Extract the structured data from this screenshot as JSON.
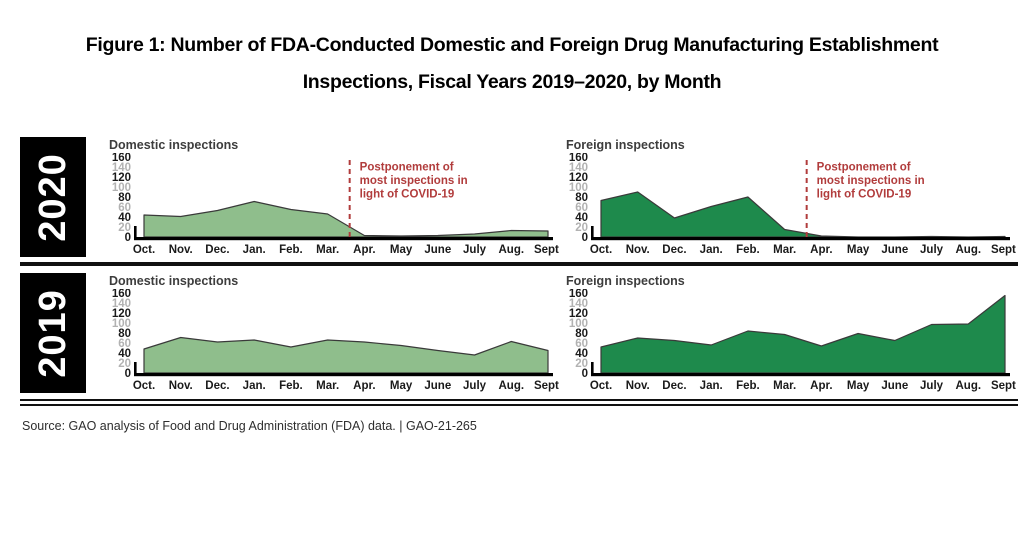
{
  "header": {
    "title_line1": "Figure 1: Number of FDA-Conducted Domestic and Foreign Drug Manufacturing Establishment",
    "title_line2": "Inspections, Fiscal Years 2019–2020, by Month"
  },
  "years": [
    "2020",
    "2019"
  ],
  "source": {
    "text": "Source: GAO analysis of Food and Drug Administration (FDA) data.  |  GAO-21-265"
  },
  "colors": {
    "domestic_fill": "#8fbe8c",
    "foreign_fill": "#1e8a4c",
    "annotation_red": "#b13c3c",
    "axis_major": "#1a1a1a",
    "axis_minor": "#b2b2b2",
    "area_outline": "#3a3a3a"
  },
  "chart_data": {
    "type": "area",
    "categories": [
      "Oct.",
      "Nov.",
      "Dec.",
      "Jan.",
      "Feb.",
      "Mar.",
      "Apr.",
      "May",
      "June",
      "July",
      "Aug.",
      "Sept."
    ],
    "ylim": [
      0,
      160
    ],
    "y_ticks": [
      0,
      20,
      40,
      60,
      80,
      100,
      120,
      140,
      160
    ],
    "grid": false,
    "legend": "none",
    "panels": [
      {
        "year": "2020",
        "series": "Domestic inspections",
        "values": [
          44,
          41,
          53,
          71,
          55,
          46,
          3,
          2,
          3,
          6,
          13,
          12
        ],
        "fill": "#8fbe8c",
        "annotation": {
          "lines": [
            "Postponement of",
            "most inspections in",
            "light of COVID-19"
          ],
          "month_position": 5.6
        }
      },
      {
        "year": "2020",
        "series": "Foreign inspections",
        "values": [
          73,
          90,
          38,
          61,
          80,
          15,
          2,
          0,
          0,
          1,
          0,
          1
        ],
        "fill": "#1e8a4c",
        "annotation": {
          "lines": [
            "Postponement of",
            "most inspections in",
            "light of COVID-19"
          ],
          "month_position": 5.6
        }
      },
      {
        "year": "2019",
        "series": "Domestic inspections",
        "values": [
          48,
          71,
          62,
          66,
          52,
          66,
          62,
          55,
          45,
          36,
          63,
          45
        ],
        "fill": "#8fbe8c",
        "annotation": null
      },
      {
        "year": "2019",
        "series": "Foreign inspections",
        "values": [
          52,
          70,
          65,
          56,
          84,
          77,
          54,
          79,
          65,
          97,
          98,
          155
        ],
        "fill": "#1e8a4c",
        "annotation": null
      }
    ]
  }
}
